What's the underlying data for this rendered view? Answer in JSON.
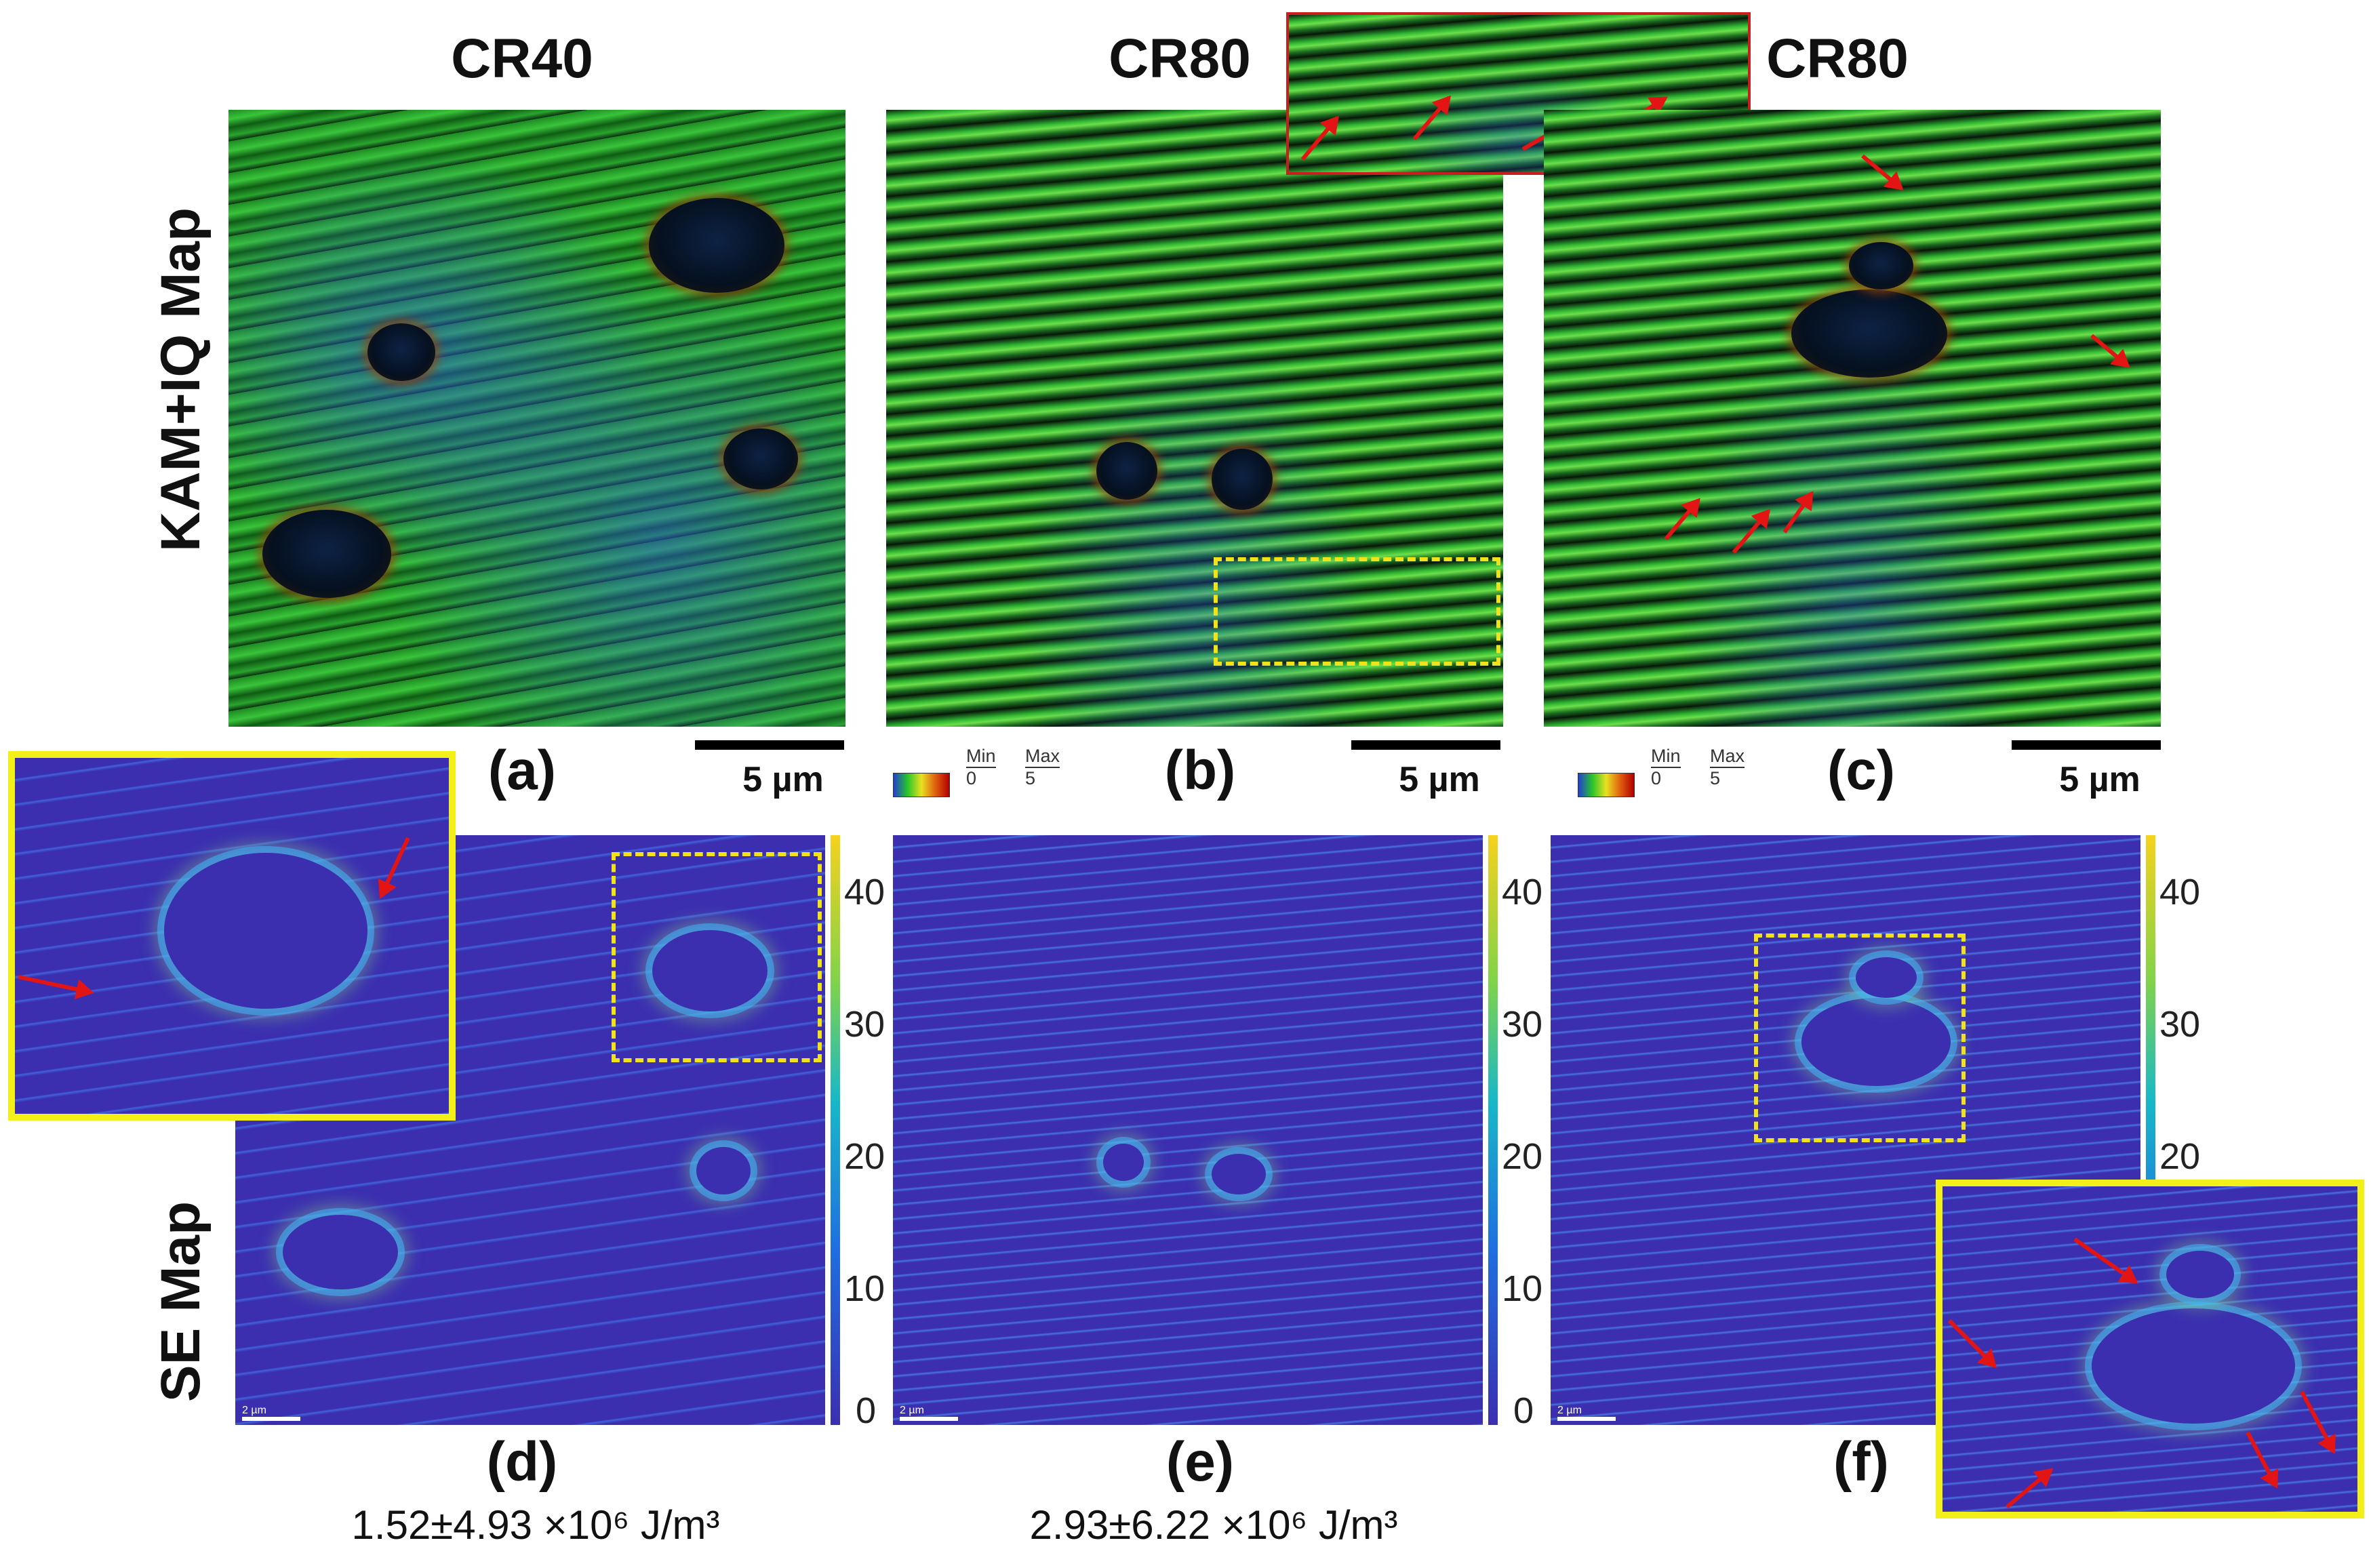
{
  "titles": {
    "col1": "CR40",
    "col2": "CR80",
    "col3": "CR80"
  },
  "row_labels": {
    "top": "KAM+IQ Map",
    "bottom": "SE Map"
  },
  "panel_labels": {
    "a": "(a)",
    "b": "(b)",
    "c": "(c)",
    "d": "(d)",
    "e": "(e)",
    "f": "(f)"
  },
  "scale_bar": "5 µm",
  "small_scale_bar": "2 µm",
  "kam_legend": {
    "min_label": "Min",
    "min_value": "0",
    "max_label": "Max",
    "max_value": "5"
  },
  "colorbar_ticks": [
    "40",
    "30",
    "20",
    "10",
    "0"
  ],
  "stats": {
    "d": "1.52±4.93 ×10⁶ J/m³",
    "e": "2.93±6.22 ×10⁶ J/m³"
  },
  "colors": {
    "highlight_box": "#f2e21a",
    "arrow": "#e31414",
    "inset_frame": "#c81e1e"
  }
}
